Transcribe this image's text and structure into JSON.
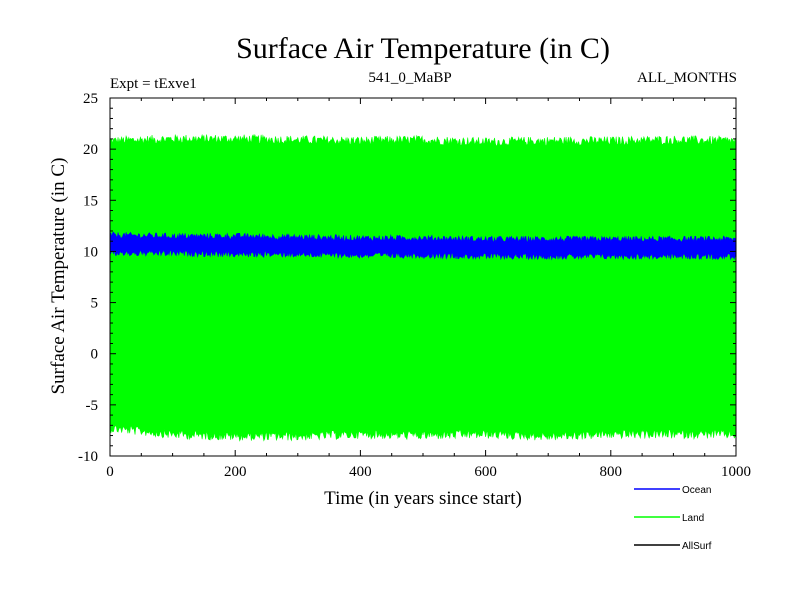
{
  "chart_data": {
    "type": "line",
    "title": "Surface Air Temperature (in C)",
    "subtitle_left": "Expt = tExve1",
    "subtitle_center": "541_0_MaBP",
    "subtitle_right": "ALL_MONTHS",
    "xlabel": "Time (in years since start)",
    "ylabel": "Surface Air Temperature (in C)",
    "xlim": [
      0,
      1000
    ],
    "ylim": [
      -10,
      25
    ],
    "x_ticks": [
      0,
      200,
      400,
      600,
      800,
      1000
    ],
    "y_ticks": [
      -10,
      -5,
      0,
      5,
      10,
      15,
      20,
      25
    ],
    "grid": false,
    "legend_position": "bottom-right",
    "series": [
      {
        "name": "Land",
        "color": "#00ff00",
        "style": "monthly oscillation band",
        "x": [
          0,
          100,
          200,
          300,
          400,
          500,
          600,
          700,
          800,
          900,
          1000
        ],
        "upper": [
          20.8,
          21.0,
          21.0,
          20.9,
          20.8,
          20.9,
          20.7,
          20.8,
          20.8,
          20.9,
          20.8
        ],
        "lower": [
          -7.0,
          -7.6,
          -7.8,
          -7.8,
          -7.6,
          -7.7,
          -7.6,
          -7.8,
          -7.6,
          -7.6,
          -7.6
        ]
      },
      {
        "name": "Ocean",
        "color": "#0000ff",
        "style": "monthly oscillation band",
        "x": [
          0,
          100,
          200,
          300,
          400,
          500,
          600,
          700,
          800,
          900,
          1000
        ],
        "upper": [
          11.6,
          11.5,
          11.5,
          11.4,
          11.3,
          11.3,
          11.2,
          11.2,
          11.2,
          11.2,
          11.2
        ],
        "lower": [
          10.0,
          10.0,
          9.9,
          9.9,
          9.8,
          9.8,
          9.7,
          9.7,
          9.7,
          9.7,
          9.7
        ]
      },
      {
        "name": "AllSurf",
        "color": "#000000",
        "style": "line (not visible, hidden behind bands)",
        "x": [],
        "y": []
      }
    ]
  }
}
